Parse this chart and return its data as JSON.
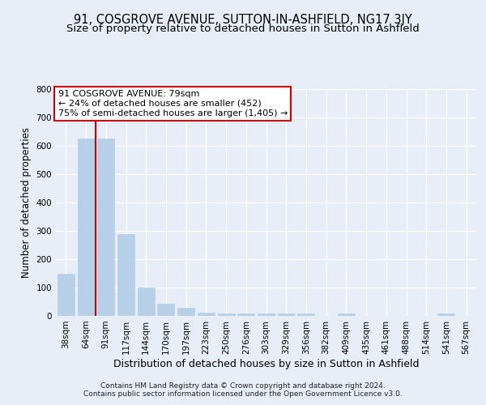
{
  "title1": "91, COSGROVE AVENUE, SUTTON-IN-ASHFIELD, NG17 3JY",
  "title2": "Size of property relative to detached houses in Sutton in Ashfield",
  "xlabel": "Distribution of detached houses by size in Sutton in Ashfield",
  "ylabel": "Number of detached properties",
  "categories": [
    "38sqm",
    "64sqm",
    "91sqm",
    "117sqm",
    "144sqm",
    "170sqm",
    "197sqm",
    "223sqm",
    "250sqm",
    "276sqm",
    "303sqm",
    "329sqm",
    "356sqm",
    "382sqm",
    "409sqm",
    "435sqm",
    "461sqm",
    "488sqm",
    "514sqm",
    "541sqm",
    "567sqm"
  ],
  "values": [
    148,
    627,
    627,
    288,
    100,
    43,
    30,
    12,
    10,
    10,
    8,
    10,
    10,
    0,
    8,
    0,
    0,
    0,
    0,
    8,
    0
  ],
  "bar_color": "#b8cfe8",
  "bar_edge_color": "#b8cfe8",
  "vline_x": 1.5,
  "vline_color": "#cc0000",
  "annotation_text": "91 COSGROVE AVENUE: 79sqm\n← 24% of detached houses are smaller (452)\n75% of semi-detached houses are larger (1,405) →",
  "annotation_box_facecolor": "#ffffff",
  "annotation_box_edgecolor": "#cc0000",
  "ylim": [
    0,
    800
  ],
  "yticks": [
    0,
    100,
    200,
    300,
    400,
    500,
    600,
    700,
    800
  ],
  "footer1": "Contains HM Land Registry data © Crown copyright and database right 2024.",
  "footer2": "Contains public sector information licensed under the Open Government Licence v3.0.",
  "bg_color": "#e8eef8",
  "plot_bg_color": "#e8eef8",
  "title1_fontsize": 10.5,
  "title2_fontsize": 9.5,
  "xlabel_fontsize": 9,
  "ylabel_fontsize": 8.5,
  "tick_fontsize": 7.5,
  "annotation_fontsize": 8,
  "footer_fontsize": 6.5
}
